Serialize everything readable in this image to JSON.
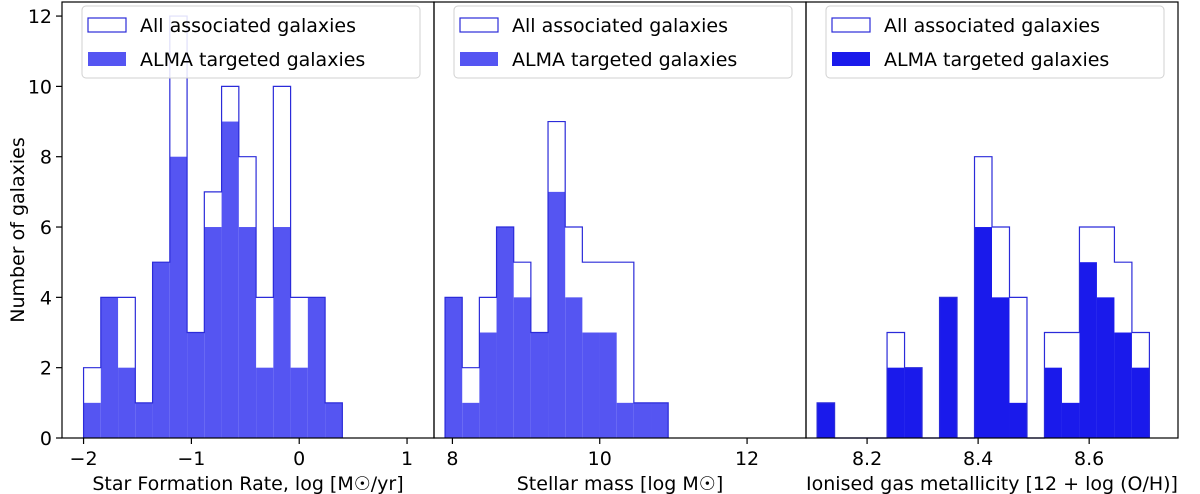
{
  "chart_data": {
    "type": "histogram",
    "shared_ylabel": "Number of galaxies",
    "ylim": [
      0,
      12.4
    ],
    "yticks": [
      0,
      2,
      4,
      6,
      8,
      10,
      12
    ],
    "legend_location": "upper",
    "legend_entries": [
      "All associated galaxies",
      "ALMA targeted galaxies"
    ],
    "panels": [
      {
        "name": "sfr",
        "xlabel": "Star Formation Rate, log [M☉/yr]",
        "xlim": [
          -2.2,
          1.25
        ],
        "xticks": [
          -2,
          -1,
          0,
          1
        ],
        "xtick_labels": [
          "−2",
          "−1",
          "0",
          "1"
        ],
        "bin_start": -2.0,
        "bin_width": 0.16,
        "all_counts": [
          2,
          4,
          4,
          1,
          5,
          12,
          3,
          7,
          10,
          8,
          4,
          10,
          4,
          4,
          1
        ],
        "alma_counts": [
          1,
          4,
          2,
          1,
          5,
          8,
          3,
          6,
          9,
          6,
          2,
          6,
          2,
          4,
          1
        ],
        "fill_color": "#5555f2",
        "outline_color": "#2b2bd9"
      },
      {
        "name": "mass",
        "xlabel": "Stellar mass [log M☉]",
        "xlim": [
          7.75,
          12.8
        ],
        "xticks": [
          8,
          10,
          12
        ],
        "xtick_labels": [
          "8",
          "10",
          "12"
        ],
        "bin_start": 7.9,
        "bin_width": 0.233,
        "all_counts": [
          4,
          2,
          4,
          6,
          5,
          3,
          9,
          6,
          5,
          5,
          5,
          1,
          1
        ],
        "alma_counts": [
          4,
          1,
          3,
          6,
          4,
          3,
          7,
          4,
          3,
          3,
          1,
          1,
          1
        ],
        "fill_color": "#5555f2",
        "outline_color": "#2b2bd9"
      },
      {
        "name": "metallicity",
        "xlabel": "Ionised gas metallicity [12 + log (O/H)]",
        "xlim": [
          8.09,
          8.76
        ],
        "xticks": [
          8.2,
          8.4,
          8.6
        ],
        "xtick_labels": [
          "8.2",
          "8.4",
          "8.6"
        ],
        "bin_start": 8.11,
        "bin_width": 0.0315,
        "all_counts": [
          1,
          0,
          0,
          0,
          3,
          2,
          0,
          4,
          0,
          8,
          6,
          4,
          0,
          3,
          3,
          6,
          6,
          5,
          3
        ],
        "alma_counts": [
          1,
          0,
          0,
          0,
          2,
          2,
          0,
          4,
          0,
          6,
          4,
          1,
          0,
          2,
          1,
          5,
          4,
          3,
          2
        ],
        "fill_color": "#1a1aeb",
        "outline_color": "#2b2bd9"
      }
    ]
  }
}
